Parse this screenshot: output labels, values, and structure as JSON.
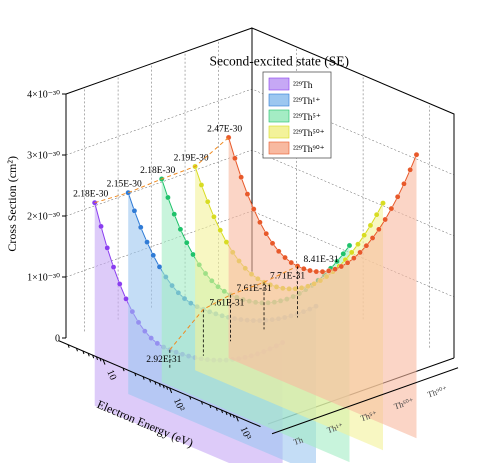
{
  "chart_data": {
    "type": "line",
    "style": "3d-waterfall",
    "title": "Second-excited state (SE)",
    "xlabel": "Electron Energy (eV)",
    "ylabel": "Cross Section (cm²)",
    "x_scale": "log",
    "x_ticks": [
      "10",
      "10²",
      "10³"
    ],
    "y_ticks": [
      "0",
      "1×10⁻³⁰",
      "2×10⁻³⁰",
      "3×10⁻³⁰",
      "4×10⁻³⁰"
    ],
    "ylim": [
      0,
      4e-30
    ],
    "series": [
      {
        "name": "²²⁹Th",
        "axis_label": "Th",
        "color": "#8a3df0",
        "fill": "#c6a8f5",
        "peak": 2.18e-30,
        "min": 2.92e-31,
        "end": 1.2e-30,
        "peak_label": "2.18E-30",
        "min_label": "2.92E-31"
      },
      {
        "name": "²²⁹Th¹⁺",
        "axis_label": "Th¹⁺",
        "color": "#2f7bd6",
        "fill": "#9cc7f0",
        "peak": 2.15e-30,
        "min": 7.61e-31,
        "end": 1.6e-30,
        "peak_label": "2.15E-30",
        "min_label": "7.61E-31"
      },
      {
        "name": "²²⁹Th⁵⁺",
        "axis_label": "Th⁵⁺",
        "color": "#1ec26a",
        "fill": "#a4ecc4",
        "peak": 2.18e-30,
        "min": 7.61e-31,
        "end": 2.4e-30,
        "peak_label": "2.18E-30",
        "min_label": "7.61E-31"
      },
      {
        "name": "²²⁹Th⁵⁰⁺",
        "axis_label": "Th⁵⁰⁺",
        "color": "#d8dc22",
        "fill": "#f3f29a",
        "peak": 2.19e-30,
        "min": 7.71e-31,
        "end": 2.9e-30,
        "peak_label": "2.19E-30",
        "min_label": "7.71E-31"
      },
      {
        "name": "²²⁹Th⁹⁰⁺",
        "axis_label": "Th⁹⁰⁺",
        "color": "#e8592a",
        "fill": "#f8b9a0",
        "peak": 2.47e-30,
        "min": 8.41e-31,
        "end": 3.5e-30,
        "peak_label": "2.47E-30",
        "min_label": "8.41E-31"
      }
    ],
    "legend_position": "top-right"
  }
}
